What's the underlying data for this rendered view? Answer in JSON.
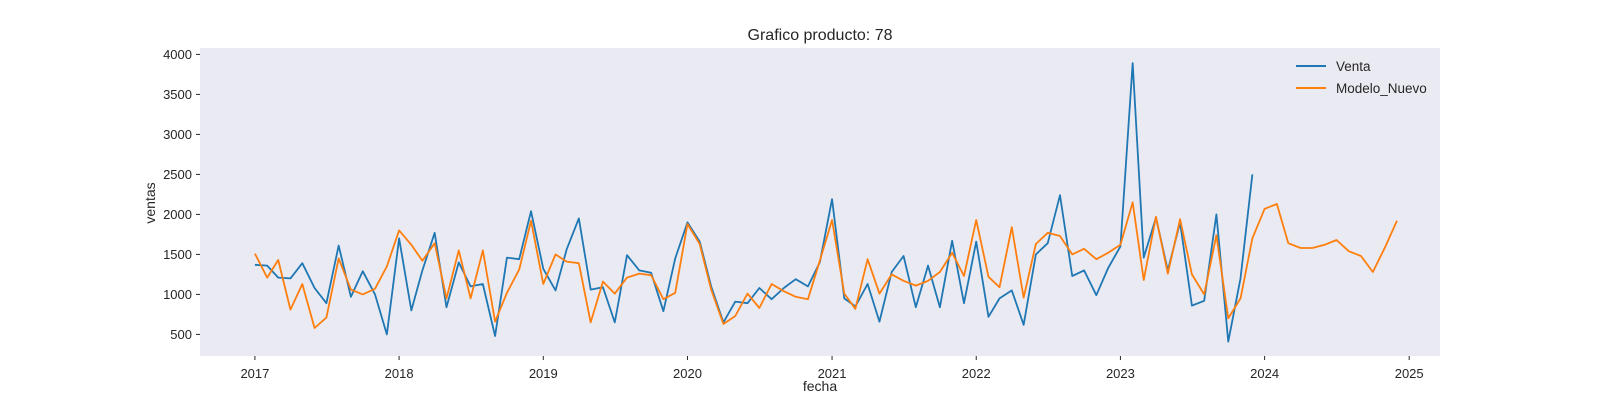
{
  "chart_data": {
    "type": "line",
    "title": "Grafico producto: 78",
    "xlabel": "fecha",
    "ylabel": "ventas",
    "x_start": "2017-01",
    "x_frequency": "monthly",
    "xlim": [
      "2016-08-15",
      "2025-03-20"
    ],
    "ylim": [
      230,
      4080
    ],
    "x_ticks": [
      "2017",
      "2018",
      "2019",
      "2020",
      "2021",
      "2022",
      "2023",
      "2024",
      "2025"
    ],
    "y_ticks": [
      500,
      1000,
      1500,
      2000,
      2500,
      3000,
      3500,
      4000
    ],
    "grid": false,
    "background": "#eaeaf2",
    "legend_position": "top-right",
    "series": [
      {
        "name": "Venta",
        "color": "#1f77b4",
        "values": [
          1370,
          1360,
          1210,
          1200,
          1390,
          1080,
          890,
          1610,
          970,
          1290,
          1000,
          500,
          1700,
          800,
          1300,
          1770,
          840,
          1400,
          1100,
          1130,
          480,
          1460,
          1440,
          2040,
          1320,
          1050,
          1560,
          1950,
          1060,
          1090,
          650,
          1490,
          1300,
          1270,
          790,
          1450,
          1900,
          1660,
          1100,
          650,
          910,
          890,
          1080,
          940,
          1080,
          1190,
          1100,
          1400,
          2190,
          950,
          850,
          1130,
          660,
          1280,
          1480,
          840,
          1360,
          840,
          1670,
          890,
          1660,
          720,
          950,
          1050,
          620,
          1500,
          1640,
          2240,
          1230,
          1300,
          990,
          1330,
          1600,
          3890,
          1460,
          1960,
          1300,
          1900,
          860,
          920,
          2000,
          410,
          1200,
          2500
        ]
      },
      {
        "name": "Modelo_Nuevo",
        "color": "#ff7f0e",
        "values": [
          1510,
          1210,
          1430,
          810,
          1130,
          580,
          710,
          1450,
          1060,
          1000,
          1070,
          1350,
          1800,
          1620,
          1420,
          1640,
          950,
          1550,
          950,
          1550,
          660,
          1020,
          1310,
          1920,
          1130,
          1500,
          1410,
          1390,
          650,
          1160,
          1010,
          1210,
          1260,
          1240,
          940,
          1020,
          1880,
          1630,
          1060,
          630,
          730,
          1010,
          830,
          1130,
          1040,
          970,
          940,
          1420,
          1930,
          1010,
          820,
          1440,
          1010,
          1250,
          1170,
          1110,
          1170,
          1280,
          1520,
          1230,
          1930,
          1220,
          1090,
          1840,
          960,
          1630,
          1770,
          1730,
          1500,
          1570,
          1440,
          1520,
          1620,
          2150,
          1180,
          1970,
          1260,
          1940,
          1250,
          1000,
          1740,
          700,
          950,
          1700,
          2070,
          2130,
          1640,
          1580,
          1580,
          1620,
          1680,
          1540,
          1480,
          1280,
          1590,
          1920
        ]
      }
    ]
  }
}
